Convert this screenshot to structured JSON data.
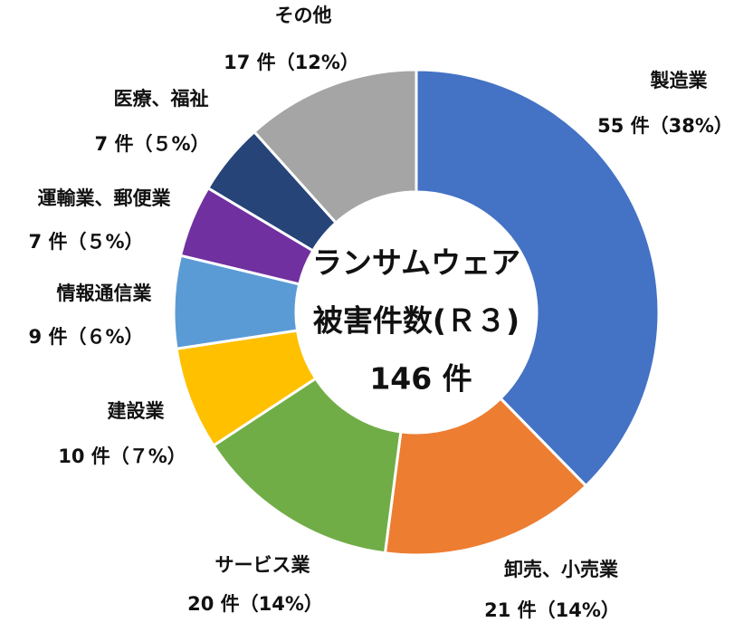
{
  "chart_data": {
    "type": "donut",
    "center_text": [
      "ランサムウェア",
      "被害件数(Ｒ３)",
      "146 件"
    ],
    "categories": [
      "製造業",
      "卸売、小売業",
      "サービス業",
      "建設業",
      "情報通信業",
      "運輸業、郵便業",
      "医療、福祉",
      "その他"
    ],
    "values": [
      55,
      21,
      20,
      10,
      9,
      7,
      7,
      17
    ],
    "value_labels": [
      "55 件（38%）",
      "21 件（14%）",
      "20 件（14%）",
      "10 件（７%）",
      "9 件（６%）",
      "7 件（５%）",
      "7 件（５%）",
      "17 件（12%）"
    ],
    "colors": [
      "#4472c4",
      "#ed7d31",
      "#70ad47",
      "#ffc000",
      "#5b9bd5",
      "#7030a0",
      "#264478",
      "#a5a5a5"
    ]
  }
}
